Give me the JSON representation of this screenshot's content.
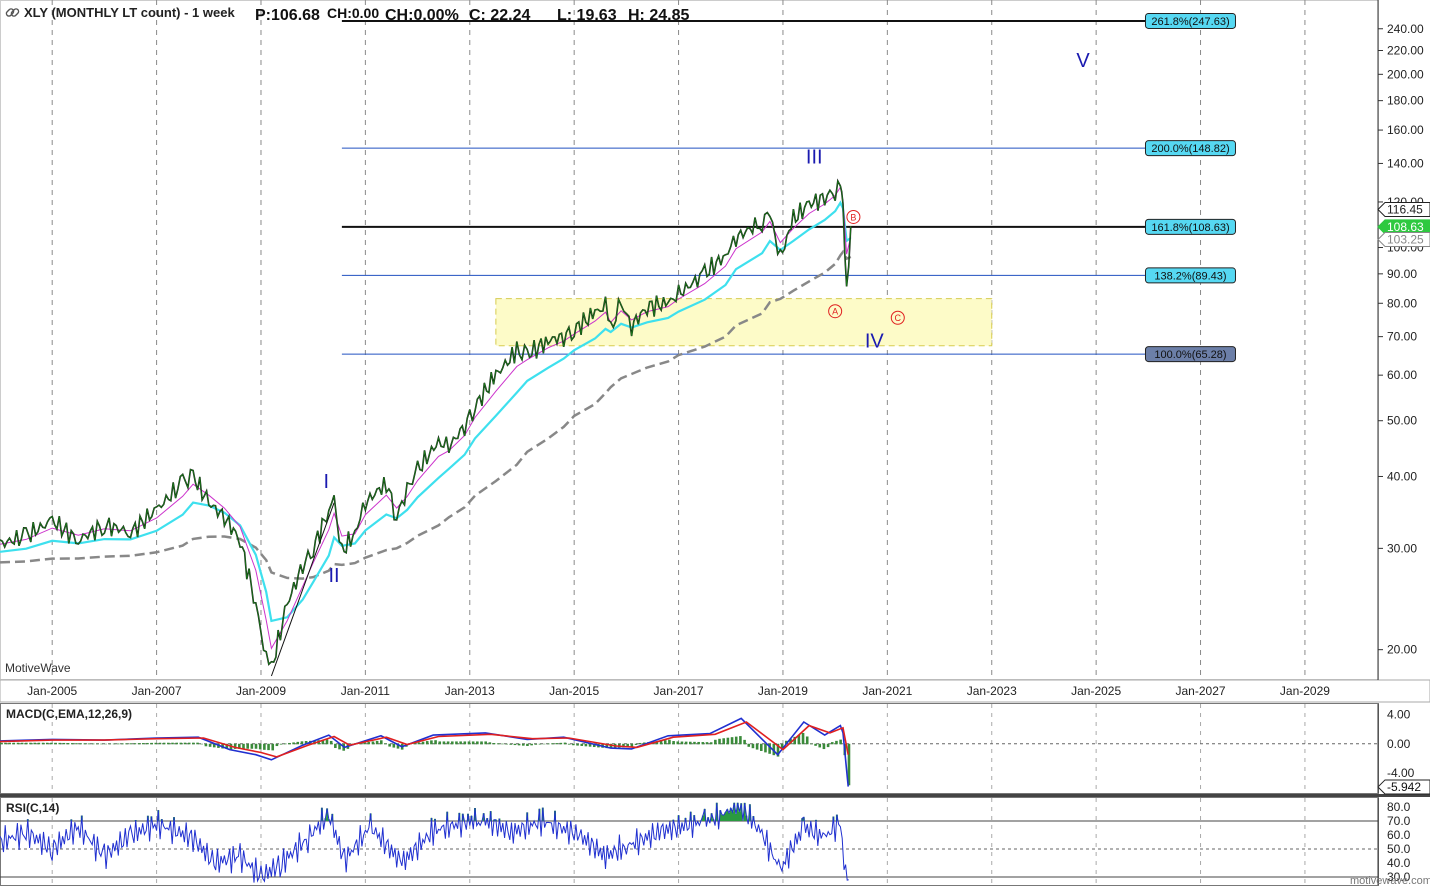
{
  "header": {
    "link_icon": "link-icon",
    "symbol_title": "XLY (MONTHLY LT count) - 1 week",
    "price": "P:106.68",
    "change": "CH:0.00",
    "change_pct": "CH:0.00%",
    "close": "C: 22.24",
    "low": "L: 19.63",
    "high": "H: 24.85"
  },
  "watermark": "MotiveWave",
  "footer": "motivewave.com",
  "colors": {
    "fast_ma": "#3ee0ee",
    "slow_ma": "#888888",
    "signal_ma": "#cc33cc",
    "price_line": "#1a7a1a",
    "fib_blue": "#2050c0",
    "fib_black": "#111111",
    "fib_label_bg": "#56d8f2",
    "fib_label_bg_dark": "#6c7fa8",
    "wave_blue": "#1a1ab0",
    "wave_red": "#e02020",
    "zone_fill": "#fdfbc8",
    "macd_line": "#2030d0",
    "macd_signal": "#e02020",
    "macd_hist": "#3a8a3a",
    "rsi_line": "#2030d0"
  },
  "chart_data": [
    {
      "type": "line",
      "title": "XLY (MONTHLY LT count) - 1 week",
      "scale": "log",
      "ylim": [
        18,
        265
      ],
      "y_ticks": [
        "20.00",
        "30.00",
        "40.00",
        "50.00",
        "60.00",
        "70.00",
        "80.00",
        "90.00",
        "100.00",
        "120.00",
        "140.00",
        "160.00",
        "180.00",
        "200.00",
        "220.00",
        "240.00"
      ],
      "x_ticks": [
        "Jan-2005",
        "Jan-2007",
        "Jan-2009",
        "Jan-2011",
        "Jan-2013",
        "Jan-2015",
        "Jan-2017",
        "Jan-2019",
        "Jan-2021",
        "Jan-2023",
        "Jan-2025",
        "Jan-2027",
        "Jan-2029"
      ],
      "grid": true,
      "price_labels": {
        "last": "116.45",
        "mid": "108.63",
        "ma": "103.25"
      },
      "series": [
        {
          "values": [
            [
              2004.0,
              30.5
            ],
            [
              2004.5,
              31.5
            ],
            [
              2005.0,
              33.5
            ],
            [
              2005.5,
              31
            ],
            [
              2006.0,
              33
            ],
            [
              2006.5,
              32
            ],
            [
              2007.0,
              35
            ],
            [
              2007.5,
              39
            ],
            [
              2007.7,
              40
            ],
            [
              2008.0,
              36
            ],
            [
              2008.3,
              34
            ],
            [
              2008.6,
              31
            ],
            [
              2008.9,
              24
            ],
            [
              2009.1,
              19.2
            ],
            [
              2009.2,
              18.5
            ],
            [
              2009.5,
              24
            ],
            [
              2009.8,
              28
            ],
            [
              2010.0,
              30
            ],
            [
              2010.3,
              35
            ],
            [
              2010.4,
              36
            ],
            [
              2010.55,
              29.5
            ],
            [
              2010.8,
              32
            ],
            [
              2011.0,
              36
            ],
            [
              2011.4,
              39
            ],
            [
              2011.6,
              34
            ],
            [
              2011.8,
              38
            ],
            [
              2012.0,
              41
            ],
            [
              2012.4,
              46
            ],
            [
              2012.6,
              45
            ],
            [
              2012.9,
              49
            ],
            [
              2013.1,
              53
            ],
            [
              2013.5,
              60
            ],
            [
              2013.9,
              66
            ],
            [
              2014.1,
              65
            ],
            [
              2014.5,
              69
            ],
            [
              2014.8,
              70
            ],
            [
              2015.0,
              72
            ],
            [
              2015.4,
              77
            ],
            [
              2015.6,
              79
            ],
            [
              2015.7,
              72
            ],
            [
              2015.9,
              80
            ],
            [
              2016.1,
              73
            ],
            [
              2016.4,
              79
            ],
            [
              2016.8,
              80
            ],
            [
              2017.0,
              83
            ],
            [
              2017.5,
              90
            ],
            [
              2017.9,
              97
            ],
            [
              2018.1,
              104
            ],
            [
              2018.6,
              111
            ],
            [
              2018.75,
              114
            ],
            [
              2018.95,
              96
            ],
            [
              2019.2,
              112
            ],
            [
              2019.5,
              119
            ],
            [
              2019.8,
              122
            ],
            [
              2020.0,
              126
            ],
            [
              2020.1,
              130
            ],
            [
              2020.15,
              116
            ],
            [
              2020.22,
              82
            ],
            [
              2020.3,
              109
            ]
          ]
        }
      ],
      "fib_levels": [
        {
          "label": "261.8%(247.63)",
          "value": 247.63,
          "style": "black",
          "dark": false
        },
        {
          "label": "200.0%(148.82)",
          "value": 148.82,
          "style": "blue",
          "dark": false
        },
        {
          "label": "161.8%(108.63)",
          "value": 108.63,
          "style": "black",
          "dark": false
        },
        {
          "label": "138.2%(89.43)",
          "value": 89.43,
          "style": "blue",
          "dark": false
        },
        {
          "label": "100.0%(65.28)",
          "value": 65.28,
          "style": "blue",
          "dark": true
        }
      ],
      "zone": {
        "x_start": 2013.5,
        "x_end": 2023.0,
        "y_low": 67.5,
        "y_high": 81.5
      },
      "wave_labels": [
        {
          "text": "I",
          "x": 2010.25,
          "y": 38.2,
          "color": "blue",
          "circled": false
        },
        {
          "text": "II",
          "x": 2010.4,
          "y": 26.2,
          "color": "blue",
          "circled": false
        },
        {
          "text": "III",
          "x": 2019.6,
          "y": 140,
          "color": "blue",
          "circled": false
        },
        {
          "text": "IV",
          "x": 2020.75,
          "y": 67,
          "color": "blue",
          "circled": false
        },
        {
          "text": "V",
          "x": 2024.75,
          "y": 206,
          "color": "blue",
          "circled": false
        },
        {
          "text": "A",
          "x": 2020.0,
          "y": 77.5,
          "color": "red",
          "circled": true
        },
        {
          "text": "B",
          "x": 2020.35,
          "y": 113,
          "color": "red",
          "circled": true
        },
        {
          "text": "C",
          "x": 2021.2,
          "y": 75.5,
          "color": "red",
          "circled": true
        }
      ]
    },
    {
      "type": "line",
      "title": "MACD(C,EMA,12,26,9)",
      "ylim": [
        -6.5,
        5.2
      ],
      "y_ticks": [
        "4.00",
        "0.00",
        "-4.00"
      ],
      "last_value": "-5.942",
      "series": [
        {
          "name": "MACD",
          "values": [
            [
              2004.0,
              0.4
            ],
            [
              2005.0,
              0.6
            ],
            [
              2006.0,
              0.5
            ],
            [
              2007.0,
              0.8
            ],
            [
              2007.8,
              0.9
            ],
            [
              2008.4,
              -0.8
            ],
            [
              2008.9,
              -1.5
            ],
            [
              2009.2,
              -2.2
            ],
            [
              2009.8,
              -0.2
            ],
            [
              2010.3,
              1.2
            ],
            [
              2010.6,
              -0.5
            ],
            [
              2011.3,
              1.1
            ],
            [
              2011.7,
              -0.4
            ],
            [
              2012.3,
              1.2
            ],
            [
              2013.3,
              1.5
            ],
            [
              2014.1,
              0.6
            ],
            [
              2014.8,
              0.9
            ],
            [
              2015.7,
              -0.6
            ],
            [
              2016.1,
              -0.7
            ],
            [
              2016.8,
              1.1
            ],
            [
              2017.6,
              1.4
            ],
            [
              2018.2,
              3.5
            ],
            [
              2018.9,
              -1.5
            ],
            [
              2019.4,
              3.0
            ],
            [
              2019.8,
              1.2
            ],
            [
              2020.1,
              2.5
            ],
            [
              2020.15,
              1.5
            ],
            [
              2020.25,
              -5.9
            ]
          ]
        },
        {
          "name": "Signal",
          "values": [
            [
              2004.0,
              0.3
            ],
            [
              2005.0,
              0.5
            ],
            [
              2006.0,
              0.5
            ],
            [
              2007.0,
              0.7
            ],
            [
              2007.9,
              0.8
            ],
            [
              2008.5,
              -0.5
            ],
            [
              2009.0,
              -1.2
            ],
            [
              2009.3,
              -1.8
            ],
            [
              2009.9,
              -0.2
            ],
            [
              2010.4,
              1.0
            ],
            [
              2010.7,
              -0.2
            ],
            [
              2011.4,
              0.9
            ],
            [
              2011.8,
              -0.1
            ],
            [
              2012.4,
              1.0
            ],
            [
              2013.4,
              1.3
            ],
            [
              2014.2,
              0.7
            ],
            [
              2014.9,
              0.8
            ],
            [
              2015.8,
              -0.3
            ],
            [
              2016.2,
              -0.5
            ],
            [
              2016.9,
              0.9
            ],
            [
              2017.7,
              1.3
            ],
            [
              2018.3,
              3.0
            ],
            [
              2019.0,
              -0.8
            ],
            [
              2019.5,
              2.5
            ],
            [
              2019.9,
              1.5
            ],
            [
              2020.15,
              2.2
            ],
            [
              2020.25,
              -1.5
            ]
          ]
        }
      ]
    },
    {
      "type": "line",
      "title": "RSI(C,14)",
      "ylim": [
        25,
        85
      ],
      "y_ticks": [
        "80.0",
        "70.0",
        "60.0",
        "50.0",
        "40.0",
        "30.0"
      ],
      "series": [
        {
          "values": [
            [
              2004.0,
              55
            ],
            [
              2004.5,
              62
            ],
            [
              2005.0,
              50
            ],
            [
              2005.5,
              66
            ],
            [
              2006.0,
              45
            ],
            [
              2006.5,
              60
            ],
            [
              2007.0,
              68
            ],
            [
              2007.7,
              58
            ],
            [
              2008.1,
              40
            ],
            [
              2008.6,
              45
            ],
            [
              2009.0,
              30
            ],
            [
              2009.4,
              40
            ],
            [
              2009.9,
              58
            ],
            [
              2010.3,
              75
            ],
            [
              2010.6,
              42
            ],
            [
              2011.1,
              66
            ],
            [
              2011.7,
              40
            ],
            [
              2012.3,
              63
            ],
            [
              2013.2,
              72
            ],
            [
              2013.8,
              62
            ],
            [
              2014.4,
              70
            ],
            [
              2015.1,
              60
            ],
            [
              2015.6,
              45
            ],
            [
              2016.0,
              52
            ],
            [
              2016.7,
              63
            ],
            [
              2017.5,
              70
            ],
            [
              2017.9,
              75
            ],
            [
              2018.1,
              82
            ],
            [
              2018.5,
              68
            ],
            [
              2018.95,
              35
            ],
            [
              2019.4,
              66
            ],
            [
              2019.8,
              58
            ],
            [
              2020.1,
              70
            ],
            [
              2020.17,
              40
            ],
            [
              2020.26,
              28
            ]
          ]
        }
      ]
    }
  ]
}
